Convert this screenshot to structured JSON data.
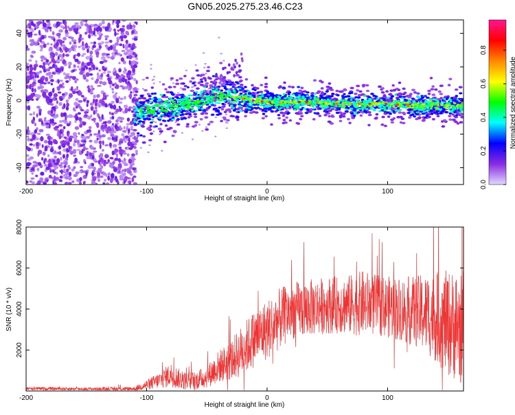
{
  "figure_title": "GN05.2025.275.23.46.C23",
  "chart_data": [
    {
      "type": "heatmap",
      "title": "",
      "xlabel": "Height of straight line (km)",
      "ylabel": "Frequency (Hz)",
      "xlim": [
        -200,
        163
      ],
      "ylim": [
        -50,
        48
      ],
      "xticks": [
        -200,
        -100,
        0,
        100
      ],
      "yticks": [
        -40,
        -20,
        0,
        20,
        40
      ],
      "colorbar": {
        "label": "Normalized spectral amplitude",
        "range": [
          0,
          0.98
        ],
        "ticks": [
          0.0,
          0.2,
          0.4,
          0.6,
          0.8
        ],
        "tick_labels": [
          "0.0",
          "0.2",
          "0.4",
          "0.6",
          "0.8"
        ],
        "colormap": [
          "#e0d8ff",
          "#8a2be2",
          "#0000ff",
          "#00ffff",
          "#00ff00",
          "#ffff00",
          "#ff8800",
          "#ff0000",
          "#ff1493"
        ]
      },
      "trace": {
        "x": [
          -110,
          -100,
          -90,
          -80,
          -70,
          -60,
          -50,
          -40,
          -30,
          -20,
          -10,
          0,
          20,
          40,
          60,
          80,
          100,
          120,
          140,
          163
        ],
        "y": [
          -8,
          -6,
          -5,
          -4,
          -3,
          -1,
          1,
          3,
          2,
          1,
          0,
          -1,
          -1,
          -1,
          -2,
          -2,
          -2,
          -3,
          -3,
          -3
        ]
      },
      "noise_region_x": [
        -200,
        -108
      ]
    },
    {
      "type": "line",
      "title": "",
      "xlabel": "Height of straight line (km)",
      "ylabel": "SNR (10 * v/v)",
      "xlim": [
        -200,
        163
      ],
      "ylim": [
        0,
        8000
      ],
      "xticks": [
        -200,
        -100,
        0,
        100
      ],
      "yticks": [
        2000,
        4000,
        6000,
        8000
      ],
      "color": "#ee3333",
      "series": [
        {
          "name": "SNR",
          "x": [
            -200,
            -150,
            -110,
            -100,
            -90,
            -80,
            -70,
            -60,
            -50,
            -40,
            -30,
            -20,
            -10,
            0,
            10,
            20,
            30,
            40,
            50,
            60,
            70,
            80,
            90,
            100,
            110,
            120,
            130,
            140,
            150,
            163
          ],
          "values": [
            120,
            100,
            110,
            300,
            500,
            800,
            500,
            500,
            700,
            1200,
            1500,
            2000,
            2600,
            3000,
            3500,
            3900,
            4000,
            4100,
            4200,
            4200,
            4200,
            4300,
            4200,
            4100,
            4000,
            3900,
            3800,
            3600,
            3300,
            3100
          ],
          "amplitude": [
            80,
            80,
            100,
            250,
            400,
            600,
            450,
            450,
            550,
            800,
            1000,
            1300,
            1400,
            1500,
            1500,
            1400,
            1400,
            1400,
            1400,
            1400,
            1500,
            1600,
            1500,
            1500,
            1600,
            1700,
            1900,
            2200,
            2600,
            2800
          ]
        }
      ]
    }
  ]
}
